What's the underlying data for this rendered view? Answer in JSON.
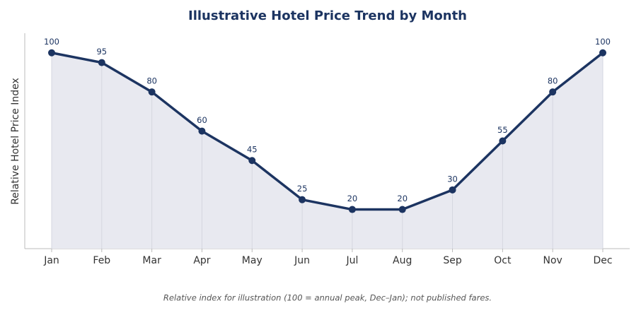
{
  "chart_data": {
    "type": "line",
    "title": "Illustrative Hotel Price Trend by Month",
    "ylabel": "Relative Hotel Price Index",
    "caption": "Relative index for illustration (100 = annual peak, Dec–Jan); not published fares.",
    "categories": [
      "Jan",
      "Feb",
      "Mar",
      "Apr",
      "May",
      "Jun",
      "Jul",
      "Aug",
      "Sep",
      "Oct",
      "Nov",
      "Dec"
    ],
    "series": [
      {
        "name": "Relative Hotel Price Index",
        "color": "#1c3461",
        "values": [
          100,
          95,
          80,
          60,
          45,
          25,
          20,
          20,
          30,
          55,
          80,
          100
        ]
      }
    ],
    "area_fill": "#e8e9f0",
    "ylim": [
      0,
      110
    ],
    "grid": false
  }
}
